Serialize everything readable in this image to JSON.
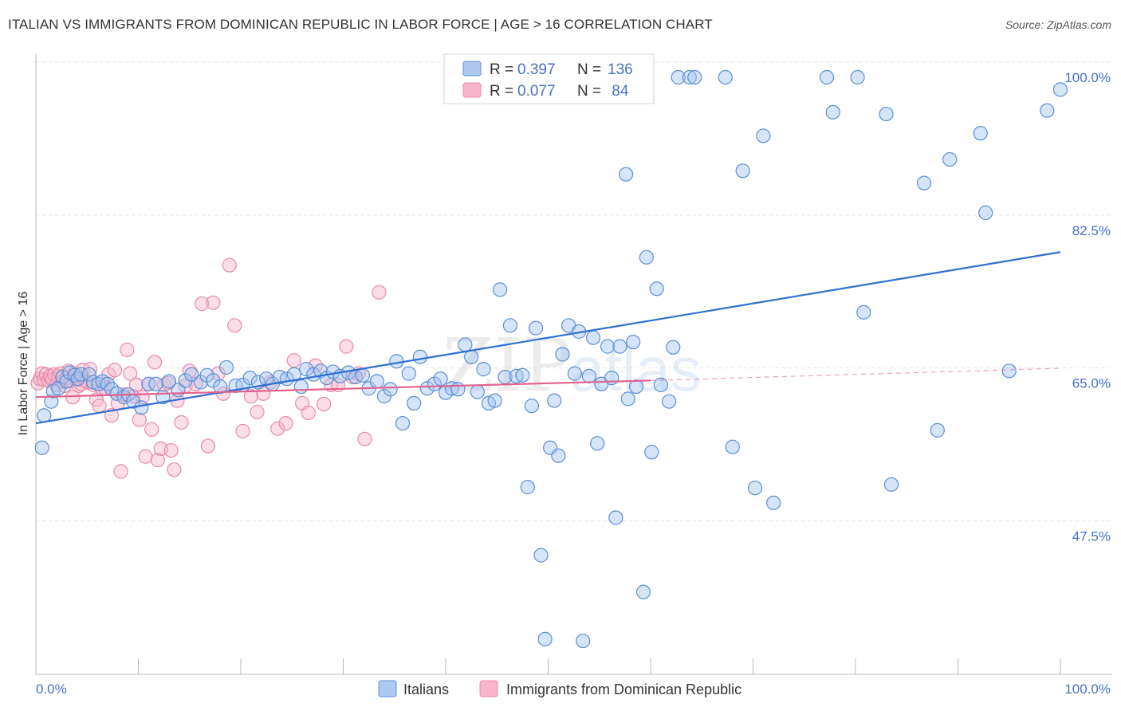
{
  "header": {
    "title": "ITALIAN VS IMMIGRANTS FROM DOMINICAN REPUBLIC IN LABOR FORCE | AGE > 16 CORRELATION CHART",
    "source": "Source: ZipAtlas.com"
  },
  "watermark": {
    "zip": "ZIP",
    "atlas": "atlas"
  },
  "stats_legend": {
    "rows": [
      {
        "r_label": "R = ",
        "r_value": "0.397",
        "n_label": "N = ",
        "n_value": "136",
        "color": "#4472c4",
        "fill": "#aec8f0"
      },
      {
        "r_label": "R = ",
        "r_value": "0.077",
        "n_label": "N = ",
        "n_value": " 84",
        "color": "#e46fa0",
        "fill": "#f7b6cb"
      }
    ]
  },
  "colors": {
    "blue_stroke": "#5b8fd6",
    "blue_fill": "rgba(164,196,240,0.45)",
    "blue_line": "#2f6fd1",
    "pink_stroke": "#e88aac",
    "pink_fill": "rgba(246,182,204,0.45)",
    "pink_line": "#e2628f",
    "grid": "#e3e3e3",
    "axis_text": "#4472c4"
  },
  "chart_data": {
    "type": "scatter",
    "title": "ITALIAN VS IMMIGRANTS FROM DOMINICAN REPUBLIC IN LABOR FORCE | AGE > 16 CORRELATION CHART",
    "xlabel": "",
    "ylabel": "In Labor Force | Age > 16",
    "xlim": [
      0,
      100
    ],
    "ylim": [
      30.5,
      101.5
    ],
    "x_tick_labels": [
      "0.0%",
      "100.0%"
    ],
    "y_ticks": [
      47.5,
      65.0,
      82.5,
      100.0
    ],
    "y_tick_labels": [
      "47.5%",
      "65.0%",
      "82.5%",
      "100.0%"
    ],
    "grid": true,
    "legend_position": "bottom",
    "series": [
      {
        "name": "Italians",
        "R": 0.397,
        "N": 136,
        "trend": {
          "x": [
            0,
            100
          ],
          "y": [
            60.4,
            80.0
          ]
        },
        "points": [
          [
            0.6,
            57.6
          ],
          [
            0.8,
            61.3
          ],
          [
            1.5,
            62.9
          ],
          [
            1.7,
            64.1
          ],
          [
            2.2,
            64.4
          ],
          [
            2.6,
            65.7
          ],
          [
            3.0,
            65.2
          ],
          [
            3.3,
            66.2
          ],
          [
            3.8,
            65.9
          ],
          [
            4.1,
            65.5
          ],
          [
            4.4,
            66.0
          ],
          [
            5.2,
            66.0
          ],
          [
            5.6,
            65.1
          ],
          [
            6.1,
            64.9
          ],
          [
            6.5,
            65.2
          ],
          [
            7.0,
            64.9
          ],
          [
            7.4,
            64.3
          ],
          [
            7.9,
            63.8
          ],
          [
            8.6,
            63.4
          ],
          [
            9.0,
            63.7
          ],
          [
            9.5,
            62.9
          ],
          [
            10.3,
            62.2
          ],
          [
            11.0,
            64.9
          ],
          [
            11.7,
            64.9
          ],
          [
            12.4,
            63.4
          ],
          [
            13.0,
            65.2
          ],
          [
            13.9,
            64.2
          ],
          [
            14.6,
            65.3
          ],
          [
            15.2,
            66.0
          ],
          [
            16.1,
            65.1
          ],
          [
            16.7,
            65.9
          ],
          [
            17.3,
            65.3
          ],
          [
            18.0,
            64.6
          ],
          [
            18.6,
            66.8
          ],
          [
            19.5,
            64.7
          ],
          [
            20.2,
            64.8
          ],
          [
            20.9,
            65.6
          ],
          [
            21.7,
            65.1
          ],
          [
            22.5,
            65.5
          ],
          [
            23.1,
            64.9
          ],
          [
            23.8,
            65.7
          ],
          [
            24.5,
            65.5
          ],
          [
            25.2,
            66.0
          ],
          [
            25.9,
            64.6
          ],
          [
            26.4,
            66.6
          ],
          [
            27.1,
            66.0
          ],
          [
            27.8,
            66.4
          ],
          [
            28.4,
            65.6
          ],
          [
            29.0,
            66.3
          ],
          [
            29.7,
            65.8
          ],
          [
            30.5,
            66.2
          ],
          [
            31.2,
            65.7
          ],
          [
            31.9,
            65.9
          ],
          [
            32.5,
            64.4
          ],
          [
            33.3,
            65.2
          ],
          [
            34.0,
            63.5
          ],
          [
            34.6,
            64.3
          ],
          [
            35.2,
            67.5
          ],
          [
            35.8,
            60.4
          ],
          [
            36.4,
            66.1
          ],
          [
            36.9,
            62.7
          ],
          [
            37.5,
            68.0
          ],
          [
            38.2,
            64.4
          ],
          [
            38.9,
            64.9
          ],
          [
            39.5,
            65.5
          ],
          [
            40.0,
            63.9
          ],
          [
            40.6,
            64.4
          ],
          [
            41.2,
            64.3
          ],
          [
            41.9,
            69.4
          ],
          [
            42.5,
            68.0
          ],
          [
            43.1,
            64.0
          ],
          [
            43.7,
            66.6
          ],
          [
            44.2,
            62.7
          ],
          [
            44.8,
            63.0
          ],
          [
            45.3,
            75.7
          ],
          [
            45.8,
            65.7
          ],
          [
            46.3,
            71.6
          ],
          [
            46.9,
            65.8
          ],
          [
            47.5,
            65.9
          ],
          [
            48.0,
            53.1
          ],
          [
            48.4,
            62.4
          ],
          [
            48.8,
            71.3
          ],
          [
            49.3,
            45.3
          ],
          [
            49.7,
            35.7
          ],
          [
            50.2,
            57.6
          ],
          [
            50.6,
            63.0
          ],
          [
            51.0,
            56.7
          ],
          [
            51.4,
            68.3
          ],
          [
            52.0,
            71.6
          ],
          [
            52.6,
            66.1
          ],
          [
            53.0,
            70.9
          ],
          [
            53.4,
            35.5
          ],
          [
            54.0,
            65.8
          ],
          [
            54.4,
            70.2
          ],
          [
            54.8,
            58.1
          ],
          [
            55.2,
            64.9
          ],
          [
            55.8,
            69.2
          ],
          [
            56.2,
            65.6
          ],
          [
            56.6,
            49.6
          ],
          [
            57.0,
            69.2
          ],
          [
            57.6,
            88.9
          ],
          [
            57.8,
            63.2
          ],
          [
            58.3,
            69.7
          ],
          [
            58.6,
            64.6
          ],
          [
            59.3,
            41.1
          ],
          [
            59.6,
            79.4
          ],
          [
            60.1,
            57.1
          ],
          [
            60.6,
            75.8
          ],
          [
            61.0,
            64.8
          ],
          [
            61.8,
            62.9
          ],
          [
            62.2,
            69.1
          ],
          [
            62.7,
            100.0
          ],
          [
            63.8,
            100.0
          ],
          [
            64.3,
            100.0
          ],
          [
            67.3,
            100.0
          ],
          [
            68.0,
            57.7
          ],
          [
            69.0,
            89.3
          ],
          [
            70.2,
            53.0
          ],
          [
            71.0,
            93.3
          ],
          [
            72.0,
            51.3
          ],
          [
            77.2,
            100.0
          ],
          [
            77.8,
            96.0
          ],
          [
            80.2,
            100.0
          ],
          [
            80.8,
            73.1
          ],
          [
            83.0,
            95.8
          ],
          [
            83.5,
            53.4
          ],
          [
            86.7,
            87.9
          ],
          [
            88.0,
            59.6
          ],
          [
            89.2,
            90.6
          ],
          [
            92.2,
            93.6
          ],
          [
            92.7,
            84.5
          ],
          [
            95.0,
            66.4
          ],
          [
            98.7,
            96.2
          ],
          [
            100.0,
            98.6
          ]
        ]
      },
      {
        "name": "Immigrants from Dominican Republic",
        "R": 0.077,
        "N": 84,
        "trend": {
          "x": [
            0,
            60
          ],
          "y": [
            63.4,
            65.3
          ],
          "dashed_extension": {
            "x": [
              60,
              100
            ],
            "y": [
              65.3,
              66.7
            ]
          }
        },
        "points": [
          [
            0.2,
            65.0
          ],
          [
            0.4,
            65.5
          ],
          [
            0.6,
            66.1
          ],
          [
            0.8,
            65.4
          ],
          [
            1.0,
            66.0
          ],
          [
            1.2,
            65.3
          ],
          [
            1.4,
            65.8
          ],
          [
            1.6,
            65.4
          ],
          [
            1.8,
            66.0
          ],
          [
            2.0,
            64.8
          ],
          [
            2.2,
            65.8
          ],
          [
            2.4,
            66.1
          ],
          [
            2.6,
            65.2
          ],
          [
            2.8,
            64.7
          ],
          [
            3.0,
            65.6
          ],
          [
            3.2,
            66.4
          ],
          [
            3.4,
            65.3
          ],
          [
            3.6,
            63.4
          ],
          [
            3.8,
            66.1
          ],
          [
            4.0,
            65.4
          ],
          [
            4.2,
            64.7
          ],
          [
            4.4,
            64.9
          ],
          [
            4.6,
            66.5
          ],
          [
            4.8,
            65.3
          ],
          [
            5.0,
            65.1
          ],
          [
            5.3,
            66.6
          ],
          [
            5.6,
            64.8
          ],
          [
            5.9,
            63.1
          ],
          [
            6.2,
            62.4
          ],
          [
            6.5,
            64.3
          ],
          [
            6.8,
            64.4
          ],
          [
            7.1,
            66.0
          ],
          [
            7.4,
            61.3
          ],
          [
            7.7,
            66.5
          ],
          [
            8.0,
            62.7
          ],
          [
            8.3,
            54.9
          ],
          [
            8.6,
            63.7
          ],
          [
            8.9,
            68.8
          ],
          [
            9.2,
            66.1
          ],
          [
            9.5,
            63.5
          ],
          [
            9.8,
            64.8
          ],
          [
            10.1,
            60.8
          ],
          [
            10.4,
            63.4
          ],
          [
            10.7,
            56.6
          ],
          [
            11.0,
            64.9
          ],
          [
            11.3,
            59.7
          ],
          [
            11.6,
            67.4
          ],
          [
            11.9,
            56.2
          ],
          [
            12.2,
            57.5
          ],
          [
            12.5,
            64.8
          ],
          [
            12.9,
            65.0
          ],
          [
            13.2,
            57.3
          ],
          [
            13.5,
            55.1
          ],
          [
            13.8,
            63.0
          ],
          [
            14.2,
            60.5
          ],
          [
            14.6,
            64.7
          ],
          [
            15.0,
            66.4
          ],
          [
            15.6,
            64.9
          ],
          [
            16.2,
            74.1
          ],
          [
            16.8,
            57.8
          ],
          [
            17.3,
            74.2
          ],
          [
            17.8,
            66.1
          ],
          [
            18.3,
            63.8
          ],
          [
            18.9,
            78.5
          ],
          [
            19.4,
            71.6
          ],
          [
            20.2,
            59.5
          ],
          [
            21.0,
            63.5
          ],
          [
            21.6,
            61.7
          ],
          [
            22.2,
            63.8
          ],
          [
            22.9,
            65.1
          ],
          [
            23.6,
            59.8
          ],
          [
            24.4,
            60.4
          ],
          [
            25.2,
            67.6
          ],
          [
            26.0,
            62.7
          ],
          [
            26.6,
            61.6
          ],
          [
            27.3,
            67.0
          ],
          [
            28.1,
            62.6
          ],
          [
            28.8,
            64.8
          ],
          [
            29.5,
            64.8
          ],
          [
            30.3,
            69.2
          ],
          [
            30.9,
            65.7
          ],
          [
            31.5,
            66.1
          ],
          [
            32.1,
            58.6
          ],
          [
            33.5,
            75.4
          ]
        ]
      }
    ]
  },
  "bottom_legend": {
    "items": [
      {
        "label": "Italians"
      },
      {
        "label": "Immigrants from Dominican Republic"
      }
    ]
  }
}
